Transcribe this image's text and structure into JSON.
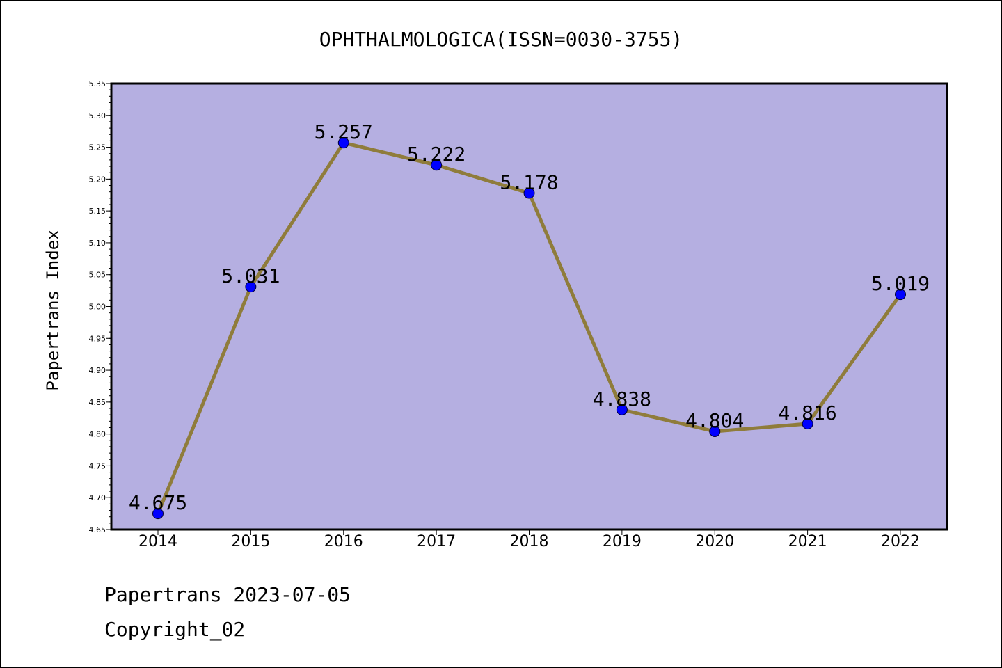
{
  "chart_data": {
    "type": "line",
    "title": "OPHTHALMOLOGICA(ISSN=0030-3755)",
    "xlabel": "",
    "ylabel": "Papertrans Index",
    "categories": [
      "2014",
      "2015",
      "2016",
      "2017",
      "2018",
      "2019",
      "2020",
      "2021",
      "2022"
    ],
    "series": [
      {
        "values": [
          4.675,
          5.031,
          5.257,
          5.222,
          5.178,
          4.838,
          4.804,
          4.816,
          5.019
        ],
        "labels": [
          "4.675",
          "5.031",
          "5.257",
          "5.222",
          "5.178",
          "4.838",
          "4.804",
          "4.816",
          "5.019"
        ]
      }
    ],
    "ylim": [
      4.65,
      5.35
    ],
    "yticks": [
      "4.65",
      "4.70",
      "4.75",
      "4.80",
      "4.85",
      "4.90",
      "4.95",
      "5.00",
      "5.05",
      "5.10",
      "5.15",
      "5.20",
      "5.25",
      "5.30",
      "5.35"
    ],
    "grid": false,
    "legend": "none",
    "colors": {
      "plot_background": "#b5afe1",
      "line": "#8f7c3b",
      "marker": "#0000ff",
      "axis": "#000000"
    }
  },
  "footer": {
    "line1": "Papertrans 2023-07-05",
    "line2": "Copyright_02"
  }
}
